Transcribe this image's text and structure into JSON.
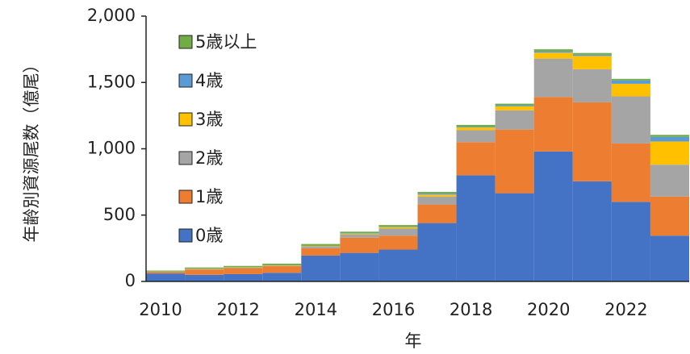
{
  "chart_data": {
    "type": "stacked-bar",
    "x_label": "年",
    "y_label": "年齢別資源尾数（億尾）",
    "categories": [
      "2010",
      null,
      "2012",
      null,
      "2014",
      null,
      "2016",
      null,
      "2018",
      null,
      "2020",
      null,
      "2022",
      null
    ],
    "series": [
      {
        "name": "0歳",
        "color": "#4472c4",
        "values": [
          60,
          50,
          55,
          65,
          195,
          215,
          240,
          440,
          800,
          665,
          980,
          755,
          600,
          345
        ]
      },
      {
        "name": "1歳",
        "color": "#ed7d31",
        "values": [
          10,
          40,
          45,
          50,
          55,
          115,
          105,
          140,
          250,
          480,
          410,
          595,
          440,
          295
        ]
      },
      {
        "name": "2歳",
        "color": "#a5a5a5",
        "values": [
          3,
          5,
          5,
          5,
          15,
          25,
          55,
          60,
          90,
          145,
          290,
          250,
          355,
          240
        ]
      },
      {
        "name": "3歳",
        "color": "#ffc000",
        "values": [
          2,
          2,
          2,
          2,
          3,
          5,
          10,
          15,
          20,
          30,
          45,
          100,
          95,
          175
        ]
      },
      {
        "name": "4歳",
        "color": "#5b9bd5",
        "values": [
          0,
          0,
          0,
          0,
          0,
          3,
          3,
          10,
          5,
          8,
          10,
          10,
          25,
          35
        ]
      },
      {
        "name": "5歳以上",
        "color": "#70ad47",
        "values": [
          7,
          8,
          10,
          12,
          14,
          12,
          12,
          10,
          15,
          12,
          15,
          12,
          12,
          15
        ]
      }
    ],
    "ylim": [
      0,
      2000
    ],
    "yticks": [
      0,
      500,
      {
        "value": 1000,
        "label": "1,000"
      },
      {
        "value": 1500,
        "label": "1,500"
      },
      {
        "value": 2000,
        "label": "2,000"
      }
    ]
  }
}
